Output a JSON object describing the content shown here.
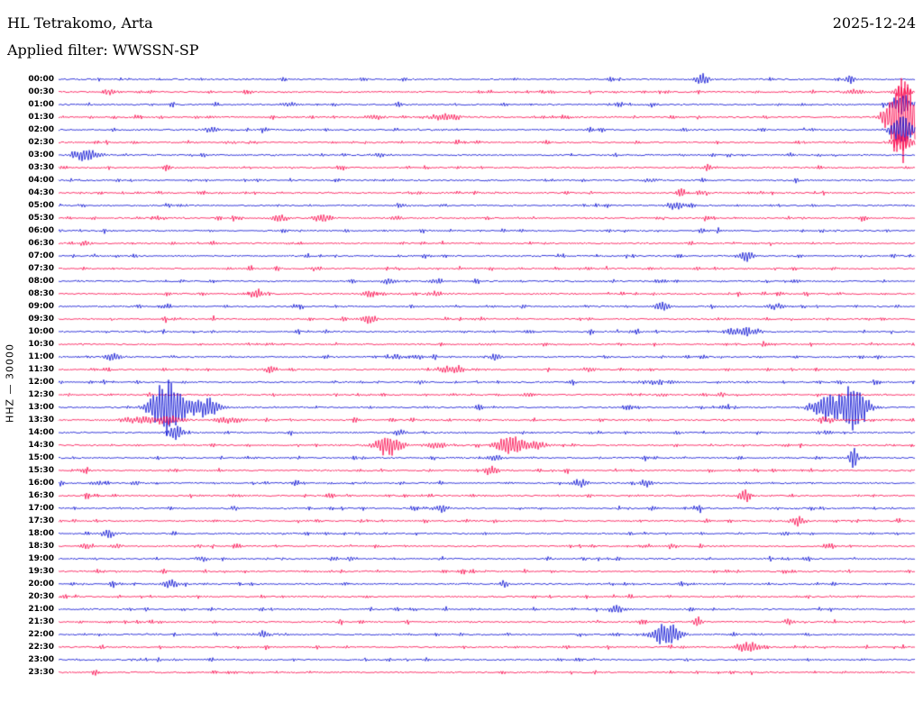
{
  "header": {
    "station": "HL Tetrakomo, Arta",
    "date": "2025-12-24",
    "filter": "Applied filter: WWSSN-SP"
  },
  "scale_label": "HHZ — 30000",
  "chart_data": {
    "type": "line",
    "kind": "helicorder-drumplot",
    "title": "HL Tetrakomo, Arta",
    "date": "2025-12-24",
    "filter": "WWSSN-SP",
    "channel": "HHZ",
    "scale_counts": 30000,
    "minutes_per_row": 30,
    "rows_total": 48,
    "grid": false,
    "legend": "none",
    "colors": {
      "b": "#0008d0",
      "r": "#fa0048"
    },
    "event_format": "[x_fraction_of_row, peak_amplitude_px, width_factor]",
    "rows": [
      {
        "t": "00:00",
        "c": "b",
        "ev": [
          [
            0.752,
            7,
            3
          ],
          [
            0.92,
            3,
            4
          ]
        ]
      },
      {
        "t": "00:30",
        "c": "r",
        "ev": [
          [
            0.061,
            5,
            1.5
          ],
          [
            0.93,
            3,
            5
          ],
          [
            0.985,
            10,
            3
          ]
        ]
      },
      {
        "t": "01:00",
        "c": "b",
        "ev": [
          [
            0.27,
            2.5,
            4
          ],
          [
            0.985,
            12,
            4
          ]
        ]
      },
      {
        "t": "01:30",
        "c": "r",
        "ev": [
          [
            0.37,
            3,
            4
          ],
          [
            0.452,
            5,
            6
          ],
          [
            0.985,
            60,
            5
          ]
        ]
      },
      {
        "t": "02:00",
        "c": "b",
        "ev": [
          [
            0.179,
            4,
            3
          ],
          [
            0.985,
            18,
            4
          ]
        ]
      },
      {
        "t": "02:30",
        "c": "r",
        "ev": [
          [
            0.2,
            2.5,
            3
          ],
          [
            0.985,
            10,
            4
          ]
        ]
      },
      {
        "t": "03:00",
        "c": "b",
        "ev": [
          [
            0.032,
            8,
            5
          ],
          [
            0.375,
            2.5,
            3
          ]
        ]
      },
      {
        "t": "03:30",
        "c": "r",
        "ev": [
          [
            0.76,
            3,
            3
          ]
        ]
      },
      {
        "t": "04:00",
        "c": "b",
        "ev": [
          [
            0.69,
            2.5,
            3
          ]
        ]
      },
      {
        "t": "04:30",
        "c": "r",
        "ev": [
          [
            0.73,
            4,
            2
          ],
          [
            0.755,
            3,
            2
          ]
        ]
      },
      {
        "t": "05:00",
        "c": "b",
        "ev": [
          [
            0.4,
            2.5,
            3
          ],
          [
            0.72,
            6,
            3
          ]
        ]
      },
      {
        "t": "05:30",
        "c": "r",
        "ev": [
          [
            0.258,
            4,
            4
          ],
          [
            0.306,
            6,
            3
          ],
          [
            0.395,
            3,
            2
          ]
        ]
      },
      {
        "t": "06:00",
        "c": "b",
        "ev": [
          [
            0.752,
            3,
            2
          ]
        ]
      },
      {
        "t": "06:30",
        "c": "r",
        "ev": [
          [
            0.032,
            5,
            2
          ]
        ]
      },
      {
        "t": "07:00",
        "c": "b",
        "ev": [
          [
            0.802,
            7,
            3
          ]
        ]
      },
      {
        "t": "07:30",
        "c": "r",
        "ev": [
          [
            0.3,
            2.5,
            3
          ]
        ]
      },
      {
        "t": "08:00",
        "c": "b",
        "ev": [
          [
            0.385,
            4,
            3
          ],
          [
            0.44,
            3,
            3
          ]
        ]
      },
      {
        "t": "08:30",
        "c": "r",
        "ev": [
          [
            0.232,
            5,
            4
          ],
          [
            0.363,
            4,
            3
          ],
          [
            0.44,
            3.5,
            3
          ]
        ]
      },
      {
        "t": "09:00",
        "c": "b",
        "ev": [
          [
            0.705,
            6,
            3
          ],
          [
            0.838,
            4,
            3
          ]
        ]
      },
      {
        "t": "09:30",
        "c": "r",
        "ev": [
          [
            0.363,
            6,
            3
          ]
        ]
      },
      {
        "t": "10:00",
        "c": "b",
        "ev": [
          [
            0.79,
            5,
            4
          ],
          [
            0.812,
            4,
            3
          ]
        ]
      },
      {
        "t": "10:30",
        "c": "r",
        "ev": [
          [
            0.5,
            2,
            3
          ]
        ]
      },
      {
        "t": "11:00",
        "c": "b",
        "ev": [
          [
            0.063,
            5,
            3
          ],
          [
            0.395,
            4,
            2
          ],
          [
            0.42,
            4,
            2
          ],
          [
            0.51,
            6,
            2
          ]
        ]
      },
      {
        "t": "11:30",
        "c": "r",
        "ev": [
          [
            0.247,
            4,
            3
          ],
          [
            0.452,
            5,
            3
          ],
          [
            0.468,
            5,
            2
          ],
          [
            0.62,
            3,
            3
          ]
        ]
      },
      {
        "t": "12:00",
        "c": "b",
        "ev": [
          [
            0.424,
            4,
            1.5
          ],
          [
            0.7,
            3,
            8
          ]
        ]
      },
      {
        "t": "12:30",
        "c": "r",
        "ev": [
          [
            0.547,
            3,
            2
          ],
          [
            0.705,
            3,
            2
          ],
          [
            0.775,
            3,
            2
          ]
        ]
      },
      {
        "t": "13:00",
        "c": "b",
        "ev": [
          [
            0.128,
            36,
            6
          ],
          [
            0.172,
            12,
            5
          ],
          [
            0.895,
            16,
            5
          ],
          [
            0.928,
            30,
            5
          ]
        ]
      },
      {
        "t": "13:30",
        "c": "r",
        "ev": [
          [
            0.09,
            4,
            8
          ],
          [
            0.13,
            5,
            6
          ],
          [
            0.2,
            4,
            6
          ],
          [
            0.895,
            4,
            4
          ]
        ]
      },
      {
        "t": "14:00",
        "c": "b",
        "ev": [
          [
            0.137,
            9,
            3
          ],
          [
            0.4,
            4,
            2
          ],
          [
            0.895,
            3,
            3
          ]
        ]
      },
      {
        "t": "14:30",
        "c": "r",
        "ev": [
          [
            0.385,
            13,
            5
          ],
          [
            0.44,
            4,
            4
          ],
          [
            0.527,
            13,
            5
          ],
          [
            0.56,
            5,
            4
          ]
        ]
      },
      {
        "t": "15:00",
        "c": "b",
        "ev": [
          [
            0.51,
            4,
            3
          ],
          [
            0.928,
            16,
            1.5
          ]
        ]
      },
      {
        "t": "15:30",
        "c": "r",
        "ev": [
          [
            0.505,
            6,
            3
          ]
        ]
      },
      {
        "t": "16:00",
        "c": "b",
        "ev": [
          [
            0.047,
            3,
            3
          ],
          [
            0.09,
            3,
            2
          ],
          [
            0.61,
            6,
            3
          ],
          [
            0.685,
            6,
            3
          ]
        ]
      },
      {
        "t": "16:30",
        "c": "r",
        "ev": [
          [
            0.8,
            8,
            2
          ]
        ]
      },
      {
        "t": "17:00",
        "c": "b",
        "ev": [
          [
            0.205,
            3,
            2
          ],
          [
            0.447,
            5,
            3
          ]
        ]
      },
      {
        "t": "17:30",
        "c": "r",
        "ev": [
          [
            0.863,
            6,
            3
          ]
        ]
      },
      {
        "t": "18:00",
        "c": "b",
        "ev": [
          [
            0.058,
            6,
            3
          ],
          [
            0.847,
            3,
            2
          ]
        ]
      },
      {
        "t": "18:30",
        "c": "r",
        "ev": [
          [
            0.032,
            4,
            2
          ],
          [
            0.068,
            4,
            2
          ],
          [
            0.716,
            4,
            2
          ]
        ]
      },
      {
        "t": "19:00",
        "c": "b",
        "ev": [
          [
            0.168,
            4,
            3
          ],
          [
            0.342,
            3,
            2
          ]
        ]
      },
      {
        "t": "19:30",
        "c": "r",
        "ev": []
      },
      {
        "t": "20:00",
        "c": "b",
        "ev": [
          [
            0.132,
            6,
            3
          ],
          [
            0.52,
            5,
            1.5
          ]
        ]
      },
      {
        "t": "20:30",
        "c": "r",
        "ev": []
      },
      {
        "t": "21:00",
        "c": "b",
        "ev": [
          [
            0.653,
            5,
            4
          ]
        ]
      },
      {
        "t": "21:30",
        "c": "r",
        "ev": [
          [
            0.747,
            7,
            2
          ],
          [
            0.853,
            4,
            2
          ]
        ]
      },
      {
        "t": "22:00",
        "c": "b",
        "ev": [
          [
            0.237,
            5,
            3
          ],
          [
            0.71,
            16,
            5
          ]
        ]
      },
      {
        "t": "22:30",
        "c": "r",
        "ev": [
          [
            0.805,
            7,
            5
          ]
        ]
      },
      {
        "t": "23:00",
        "c": "b",
        "ev": []
      },
      {
        "t": "23:30",
        "c": "r",
        "ev": []
      }
    ]
  }
}
